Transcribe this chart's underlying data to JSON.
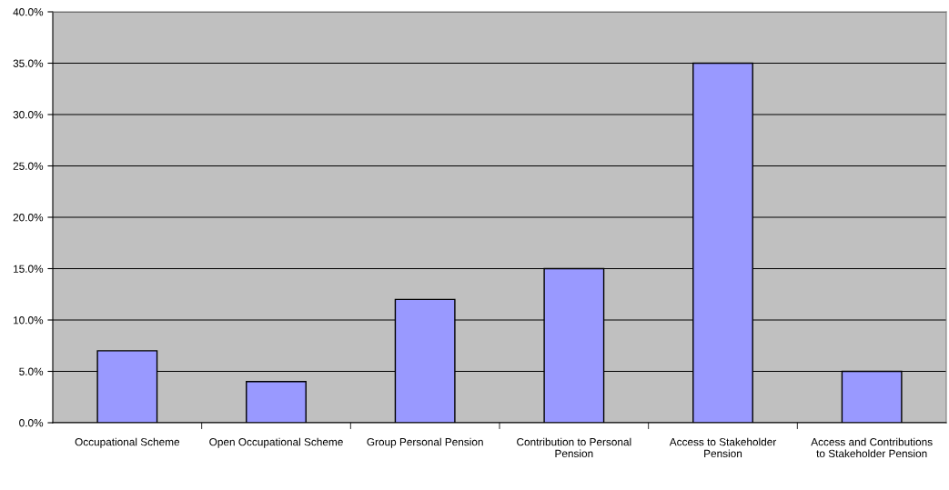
{
  "chart_data": {
    "type": "bar",
    "categories": [
      "Occupational Scheme",
      "Open Occupational Scheme",
      "Group Personal Pension",
      "Contribution to Personal Pension",
      "Access to Stakeholder Pension",
      "Access and Contributions to Stakeholder Pension"
    ],
    "values": [
      7,
      4,
      12,
      15,
      35,
      5
    ],
    "color": "#9999ff",
    "ylim": [
      0,
      40
    ],
    "yticks": [
      {
        "value": 0,
        "label": "0.0%"
      },
      {
        "value": 5,
        "label": "5.0%"
      },
      {
        "value": 10,
        "label": "10.0%"
      },
      {
        "value": 15,
        "label": "15.0%"
      },
      {
        "value": 20,
        "label": "20.0%"
      },
      {
        "value": 25,
        "label": "25.0%"
      },
      {
        "value": 30,
        "label": "30.0%"
      },
      {
        "value": 35,
        "label": "35.0%"
      },
      {
        "value": 40,
        "label": "40.0%"
      }
    ],
    "grid": "y",
    "legend": false
  }
}
